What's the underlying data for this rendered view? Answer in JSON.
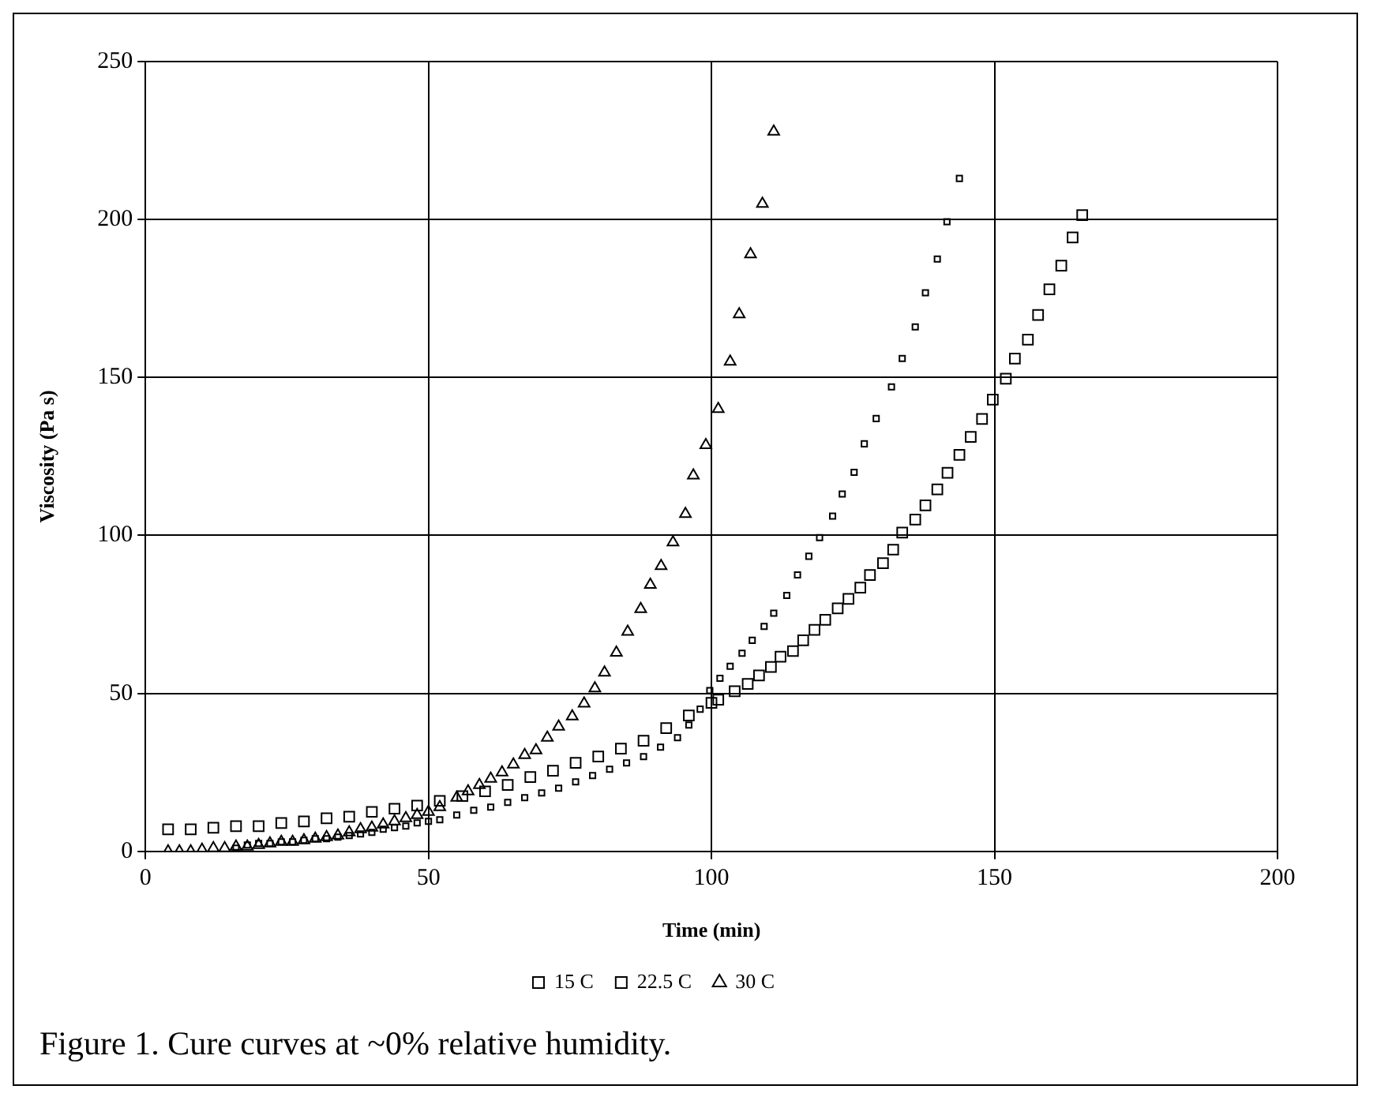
{
  "chart_data": {
    "type": "scatter",
    "xlabel": "Time (min)",
    "ylabel": "Viscosity (Pa s)",
    "xlim": [
      0,
      200
    ],
    "xticks": [
      0,
      50,
      100,
      150,
      200
    ],
    "ylim": [
      0,
      250
    ],
    "yticks": [
      0,
      50,
      100,
      150,
      200,
      250
    ],
    "grid": true,
    "legend": "bottom",
    "series": [
      {
        "name": "15 C",
        "color": "#000000",
        "marker": "square",
        "x": [
          4,
          8,
          12,
          16,
          20,
          24,
          28,
          32,
          36,
          40,
          44,
          48,
          52,
          56,
          60,
          64,
          68,
          72,
          76,
          80,
          84,
          88,
          92,
          96,
          100,
          101.2,
          104.1,
          106.4,
          108.4,
          110.5,
          112.2,
          114.4,
          116.2,
          118.2,
          120.1,
          122.3,
          124.2,
          126.3,
          128,
          130.3,
          132.1,
          133.7,
          136,
          137.8,
          139.9,
          141.7,
          143.8,
          145.8,
          147.8,
          149.7,
          152,
          153.6,
          155.9,
          157.7,
          159.7,
          161.8,
          163.8,
          165.5
        ],
        "values": [
          7,
          7,
          7.5,
          8,
          8,
          9,
          9.5,
          10.5,
          11,
          12.5,
          13.5,
          14.5,
          16,
          17.5,
          19,
          21,
          23.5,
          25.5,
          28,
          30,
          32.5,
          35,
          39,
          43,
          47,
          48,
          50.7,
          53,
          55.7,
          58.4,
          61.6,
          63.4,
          66.8,
          70.1,
          73.3,
          76.9,
          79.9,
          83.5,
          87.5,
          91.2,
          95.5,
          100.9,
          105,
          109.5,
          114.6,
          119.8,
          125.5,
          131.2,
          136.9,
          143,
          149.6,
          156,
          162,
          169.8,
          177.9,
          185.4,
          194.3,
          201.4
        ]
      },
      {
        "name": "22.5 C",
        "color": "#000000",
        "marker": "square",
        "x": [
          16,
          18,
          20,
          22,
          24,
          26,
          28,
          30,
          32,
          34,
          36,
          38,
          40,
          42,
          44,
          46,
          48,
          50,
          52,
          55,
          58,
          61,
          64,
          67,
          70,
          73,
          76,
          79,
          82,
          85,
          88,
          91,
          94,
          96,
          98,
          99.7,
          101.5,
          103.3,
          105.4,
          107.2,
          109.3,
          111,
          113.3,
          115.2,
          117.2,
          119.1,
          121.4,
          123.1,
          125.2,
          127,
          129.1,
          131.8,
          133.7,
          136,
          137.8,
          139.9,
          141.6,
          143.8
        ],
        "values": [
          1,
          2,
          2.5,
          2.5,
          3,
          3,
          3.5,
          4,
          4,
          4.5,
          5,
          5.5,
          6,
          7,
          7.5,
          8,
          9,
          9.5,
          10,
          11.5,
          13,
          14,
          15.5,
          17,
          18.5,
          20,
          22,
          24,
          26,
          28,
          30,
          33,
          36,
          40,
          45,
          50.9,
          54.8,
          58.6,
          62.7,
          66.8,
          71.2,
          75.4,
          81,
          87.5,
          93.4,
          99.3,
          106.1,
          113.1,
          120,
          129,
          137,
          147,
          156,
          166,
          176.8,
          187.5,
          199.3,
          213
        ]
      },
      {
        "name": "30 C",
        "color": "#000000",
        "marker": "triangle",
        "x": [
          4,
          6,
          8,
          10,
          12,
          14,
          16,
          18,
          20,
          22,
          24,
          26,
          28,
          30,
          32,
          34,
          36,
          38,
          40,
          42,
          44,
          46,
          48,
          50,
          52,
          55,
          57,
          59,
          61,
          63,
          65,
          67,
          69,
          71,
          73,
          75.4,
          77.5,
          79.4,
          81.1,
          83.2,
          85.2,
          87.5,
          89.2,
          91.1,
          93.2,
          95.4,
          96.8,
          99,
          101.2,
          103.3,
          104.9,
          106.9,
          109,
          111
        ],
        "values": [
          0,
          0,
          0,
          0.5,
          1,
          1,
          1.5,
          1.5,
          2,
          2.5,
          3,
          3,
          3.5,
          4,
          4.5,
          5,
          6,
          7,
          7.5,
          8.5,
          9.5,
          10.5,
          11.5,
          12.5,
          14,
          17,
          19,
          21,
          23,
          25,
          27.5,
          30.5,
          32,
          36,
          39.5,
          42.7,
          46.8,
          51.6,
          56.6,
          62.9,
          69.5,
          76.7,
          84.4,
          90.3,
          97.8,
          106.8,
          119,
          128.6,
          140,
          155,
          170,
          189,
          205,
          227.8
        ]
      }
    ],
    "annotations": [
      "Figure 1. Cure curves at ~0% relative humidity."
    ]
  }
}
